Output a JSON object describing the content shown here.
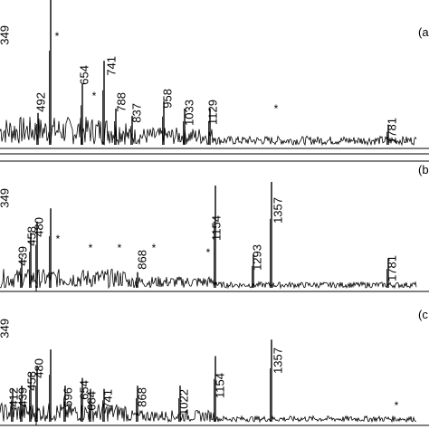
{
  "chart_data": [
    {
      "type": "line",
      "panel_label": "(a",
      "peaks": [
        {
          "label": "349",
          "height": 1.0
        },
        {
          "label": "492",
          "height": 0.22
        },
        {
          "label": "654",
          "height": 0.42
        },
        {
          "label": "741",
          "height": 0.58
        },
        {
          "label": "788",
          "height": 0.25
        },
        {
          "label": "837",
          "height": 0.2
        },
        {
          "label": "958",
          "height": 0.3
        },
        {
          "label": "1033",
          "height": 0.25
        },
        {
          "label": "1129",
          "height": 0.25
        },
        {
          "label": "1781",
          "height": 0.14
        }
      ],
      "asterisks": 3
    },
    {
      "type": "line",
      "panel_label": "(b",
      "peaks": [
        {
          "label": "349",
          "height": 0.66
        },
        {
          "label": "439",
          "height": 0.25
        },
        {
          "label": "458",
          "height": 0.46
        },
        {
          "label": "480",
          "height": 0.55
        },
        {
          "label": "868",
          "height": 0.13
        },
        {
          "label": "1154",
          "height": 0.85
        },
        {
          "label": "1293",
          "height": 0.28
        },
        {
          "label": "1357",
          "height": 0.88
        },
        {
          "label": "1781",
          "height": 0.24
        }
      ],
      "asterisks": 5
    },
    {
      "type": "line",
      "panel_label": "(c",
      "peaks": [
        {
          "label": "349",
          "height": 0.66
        },
        {
          "label": "412",
          "height": 0.3
        },
        {
          "label": "439",
          "height": 0.33
        },
        {
          "label": "458",
          "height": 0.45
        },
        {
          "label": "480",
          "height": 0.5
        },
        {
          "label": "596",
          "height": 0.33
        },
        {
          "label": "654",
          "height": 0.4
        },
        {
          "label": "684",
          "height": 0.3
        },
        {
          "label": "741",
          "height": 0.3
        },
        {
          "label": "868",
          "height": 0.33
        },
        {
          "label": "1022",
          "height": 0.33
        },
        {
          "label": "1154",
          "height": 0.6
        },
        {
          "label": "1357",
          "height": 0.75
        }
      ],
      "asterisks": 1
    }
  ]
}
